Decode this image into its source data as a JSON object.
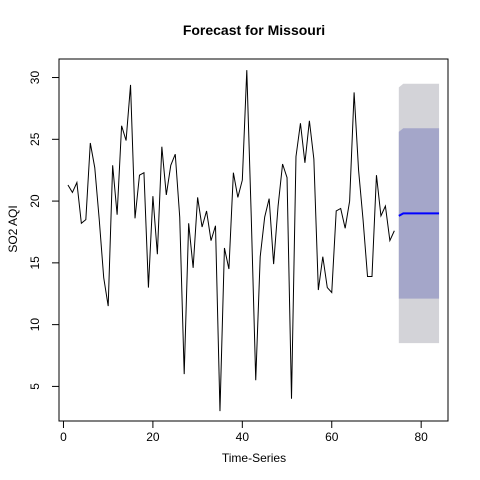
{
  "chart_data": {
    "type": "line",
    "title": "Forecast for Missouri",
    "xlabel": "Time-Series",
    "ylabel": "SO2 AQI",
    "xlim": [
      -1,
      86
    ],
    "ylim": [
      2.2,
      31.5
    ],
    "xticks": [
      0,
      20,
      40,
      60,
      80
    ],
    "yticks": [
      5,
      10,
      15,
      20,
      25,
      30
    ],
    "grid": false,
    "series": [
      {
        "values": [
          21.3,
          20.7,
          21.5,
          18.2,
          18.5,
          24.7,
          22.7,
          18.5,
          13.8,
          11.5,
          22.9,
          18.9,
          26.1,
          24.9,
          29.4,
          18.6,
          22.1,
          22.3,
          13.0,
          20.4,
          15.7,
          24.4,
          20.5,
          22.9,
          23.8,
          18.7,
          6.0,
          18.2,
          14.6,
          20.3,
          17.9,
          19.2,
          16.8,
          18.0,
          3.0,
          16.2,
          14.5,
          22.3,
          20.3,
          21.7,
          30.6,
          18.7,
          5.5,
          15.5,
          18.7,
          20.2,
          14.9,
          19.6,
          23.0,
          21.9,
          4.0,
          23.6,
          26.3,
          23.1,
          26.5,
          23.4,
          12.8,
          15.5,
          13.0,
          12.6,
          19.2,
          19.4,
          17.8,
          20.0,
          28.8,
          22.5,
          18.5,
          13.9,
          13.9,
          22.1,
          18.8,
          19.6,
          16.8,
          17.6
        ]
      }
    ],
    "forecast": {
      "x": [
        75,
        76,
        77,
        78,
        79,
        80,
        81,
        82,
        83,
        84
      ],
      "mean": [
        18.8,
        19.0,
        19.0,
        19.0,
        19.0,
        19.0,
        19.0,
        19.0,
        19.0,
        19.0
      ],
      "lo80": [
        12.1,
        12.1,
        12.1,
        12.1,
        12.1,
        12.1,
        12.1,
        12.1,
        12.1,
        12.1
      ],
      "hi80": [
        25.6,
        25.9,
        25.9,
        25.9,
        25.9,
        25.9,
        25.9,
        25.9,
        25.9,
        25.9
      ],
      "lo95": [
        8.5,
        8.5,
        8.5,
        8.5,
        8.5,
        8.5,
        8.5,
        8.5,
        8.5,
        8.5
      ],
      "hi95": [
        29.2,
        29.5,
        29.5,
        29.5,
        29.5,
        29.5,
        29.5,
        29.5,
        29.5,
        29.5
      ]
    },
    "colors": {
      "history": "#000000",
      "mean": "#0000ff",
      "band80": "#a4a6c9",
      "band95": "#d3d3d8"
    }
  }
}
